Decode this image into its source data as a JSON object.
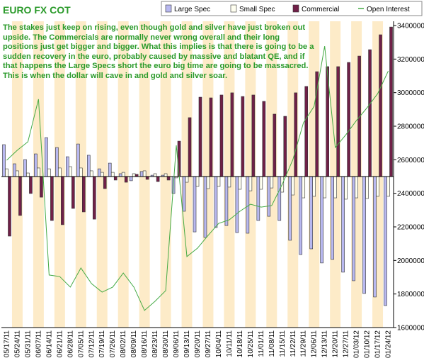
{
  "chart_data": {
    "type": "bar",
    "title": "EURO FX COT",
    "annotation": "The stakes just keep on rising, even though gold and silver have just broken out upside. The Commercials are normally never wrong overall and their long positions just get bigger and bigger. What this implies is that there is going to be a sudden recovery in the euro, probably caused by massive and blatant QE, and if that happens the Large Specs short the euro big time are going to be massacred. This is when the dollar will cave in and gold and silver soar.",
    "categories": [
      "05/17/11",
      "05/24/11",
      "05/31/11",
      "06/07/11",
      "06/14/11",
      "06/21/11",
      "06/28/11",
      "07/05/11",
      "07/12/11",
      "07/19/11",
      "07/26/11",
      "08/02/11",
      "08/09/11",
      "08/16/11",
      "08/23/11",
      "08/30/11",
      "09/06/11",
      "09/13/11",
      "09/20/11",
      "09/27/11",
      "10/04/11",
      "10/11/11",
      "10/18/11",
      "10/25/11",
      "11/01/11",
      "11/08/11",
      "11/15/11",
      "11/22/11",
      "11/29/11",
      "12/06/11",
      "12/13/11",
      "12/20/11",
      "12/27/11",
      "01/03/12",
      "01/10/12",
      "01/17/12",
      "01/24/12"
    ],
    "series": [
      {
        "name": "Large Spec",
        "color": "#b8b8f0",
        "values": [
          190000,
          76000,
          101000,
          135000,
          232000,
          173000,
          118000,
          194000,
          127000,
          46000,
          80000,
          17000,
          -25000,
          30000,
          8000,
          8000,
          -101000,
          -207000,
          -330000,
          -363000,
          -304000,
          -292000,
          -334000,
          -338000,
          -262000,
          -237000,
          -262000,
          -380000,
          -465000,
          -431000,
          -515000,
          -494000,
          -570000,
          -621000,
          -697000,
          -718000,
          -769000
        ]
      },
      {
        "name": "Small Spec",
        "color": "#fffff0",
        "values": [
          46000,
          34000,
          21000,
          51000,
          46000,
          51000,
          59000,
          51000,
          34000,
          25000,
          25000,
          25000,
          17000,
          34000,
          17000,
          17000,
          -8000,
          -34000,
          -59000,
          -72000,
          -59000,
          -63000,
          -76000,
          -85000,
          -76000,
          -68000,
          -93000,
          -110000,
          -127000,
          -118000,
          -127000,
          -127000,
          -135000,
          -127000,
          -131000,
          -118000,
          -118000
        ]
      },
      {
        "name": "Commercial",
        "color": "#702048",
        "values": [
          -355000,
          -232000,
          -101000,
          -123000,
          -262000,
          -287000,
          -190000,
          -211000,
          -254000,
          -72000,
          -21000,
          -34000,
          13000,
          -17000,
          -30000,
          -21000,
          211000,
          351000,
          473000,
          469000,
          486000,
          499000,
          477000,
          486000,
          448000,
          372000,
          359000,
          499000,
          537000,
          625000,
          655000,
          655000,
          680000,
          718000,
          756000,
          845000,
          891000
        ]
      },
      {
        "name": "Open Interest",
        "type": "line",
        "axis": "y2",
        "color": "#44aa44",
        "values": [
          2597000,
          2657000,
          2707000,
          2961000,
          1913000,
          1904000,
          1841000,
          1955000,
          1862000,
          1811000,
          1841000,
          1925000,
          1841000,
          1702000,
          1757000,
          1820000,
          2686000,
          2023000,
          2073000,
          2149000,
          2221000,
          2242000,
          2293000,
          2335000,
          2318000,
          2327000,
          2454000,
          2601000,
          2821000,
          2918000,
          3277000,
          2673000,
          2749000,
          2834000,
          2910000,
          2994000,
          3129000
        ]
      }
    ],
    "ylim": [
      -900000,
      900000
    ],
    "y2lim": [
      1600000,
      3400000
    ],
    "y2ticks": [
      1600000,
      1800000,
      2000000,
      2200000,
      2400000,
      2600000,
      2800000,
      3000000,
      3200000,
      3400000
    ],
    "band_color": "#fdebc8"
  }
}
